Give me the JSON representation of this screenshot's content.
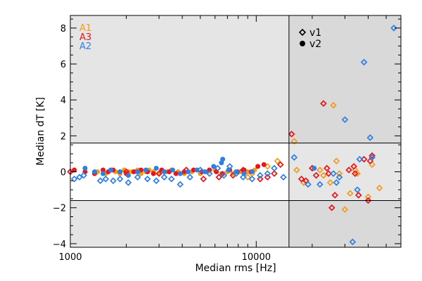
{
  "chart_data": {
    "type": "scatter",
    "title": "",
    "xlabel": "Median rms [Hz]",
    "ylabel": "Median dT [K]",
    "x_scale": "log",
    "xlim": [
      1000,
      60000
    ],
    "ylim": [
      -4.2,
      8.7
    ],
    "x_ticks": [
      1000,
      10000
    ],
    "x_tick_labels": [
      "1000",
      "10000"
    ],
    "y_ticks": [
      -4,
      -2,
      0,
      2,
      4,
      6,
      8
    ],
    "y_tick_labels": [
      "−4",
      "−2",
      "0",
      "2",
      "4",
      "6",
      "8"
    ],
    "legend_channels": [
      {
        "label": "A1",
        "color": "#f39b1e"
      },
      {
        "label": "A3",
        "color": "#e8151b"
      },
      {
        "label": "A2",
        "color": "#2f7fe3"
      }
    ],
    "legend_versions": [
      {
        "label": "v1",
        "marker": "open-diamond"
      },
      {
        "label": "v2",
        "marker": "filled-circle"
      }
    ],
    "legend_placement": "top-left (channels), top-center (versions)",
    "reference_lines": {
      "x": 15000,
      "y": [
        1.6,
        -1.6
      ]
    },
    "shaded_regions": "y > 1.6 and y < -1.6 light gray; x > 15000 darker gray",
    "series": [
      {
        "channel": "A1",
        "version": "v1",
        "color": "#f39b1e",
        "points": [
          [
            9000,
            -0.3
          ],
          [
            9500,
            -0.1
          ],
          [
            11500,
            0.3
          ],
          [
            13000,
            0.6
          ],
          [
            16000,
            1.7
          ],
          [
            16500,
            0.1
          ],
          [
            18000,
            -0.6
          ],
          [
            20000,
            0.2
          ],
          [
            22000,
            0.1
          ],
          [
            23000,
            -0.2
          ],
          [
            25000,
            -0.6
          ],
          [
            26000,
            3.7
          ],
          [
            27000,
            0.6
          ],
          [
            28000,
            -0.1
          ],
          [
            30000,
            -2.1
          ],
          [
            32000,
            -1.2
          ],
          [
            34000,
            0.1
          ],
          [
            35000,
            -0.1
          ],
          [
            40000,
            -1.4
          ],
          [
            42000,
            0.4
          ],
          [
            46000,
            -0.9
          ]
        ]
      },
      {
        "channel": "A1",
        "version": "v2",
        "color": "#f39b1e",
        "points": [
          [
            1400,
            0.0
          ],
          [
            1550,
            -0.1
          ],
          [
            1650,
            0.1
          ],
          [
            1750,
            0.0
          ],
          [
            1850,
            -0.1
          ],
          [
            1950,
            0.1
          ],
          [
            2050,
            0.0
          ],
          [
            2150,
            0.0
          ],
          [
            2300,
            0.1
          ],
          [
            2400,
            -0.1
          ],
          [
            2550,
            0.0
          ],
          [
            2650,
            0.1
          ],
          [
            2800,
            0.0
          ],
          [
            3000,
            -0.1
          ],
          [
            3300,
            0.0
          ],
          [
            3500,
            0.1
          ],
          [
            3800,
            0.0
          ],
          [
            4100,
            -0.1
          ],
          [
            4500,
            0.0
          ],
          [
            5000,
            -0.1
          ],
          [
            5500,
            0.0
          ],
          [
            6000,
            0.1
          ],
          [
            6500,
            -0.1
          ],
          [
            7000,
            0.0
          ],
          [
            7500,
            -0.1
          ],
          [
            8200,
            0.0
          ],
          [
            9000,
            0.0
          ],
          [
            9800,
            0.1
          ]
        ]
      },
      {
        "channel": "A3",
        "version": "v1",
        "color": "#e8151b",
        "points": [
          [
            1000,
            0.0
          ],
          [
            2000,
            0.0
          ],
          [
            3000,
            -0.1
          ],
          [
            4200,
            0.1
          ],
          [
            5200,
            -0.4
          ],
          [
            6300,
            -0.3
          ],
          [
            7500,
            -0.2
          ],
          [
            8500,
            0.1
          ],
          [
            10500,
            -0.4
          ],
          [
            11500,
            -0.3
          ],
          [
            12500,
            -0.1
          ],
          [
            13500,
            0.4
          ],
          [
            15500,
            2.1
          ],
          [
            17500,
            -0.4
          ],
          [
            18500,
            -0.5
          ],
          [
            20000,
            0.2
          ],
          [
            21000,
            -0.2
          ],
          [
            23000,
            3.8
          ],
          [
            24000,
            0.2
          ],
          [
            24500,
            -0.1
          ],
          [
            25500,
            -2.0
          ],
          [
            26500,
            -1.3
          ],
          [
            31500,
            0.1
          ],
          [
            33500,
            0.3
          ],
          [
            34000,
            -0.1
          ],
          [
            35500,
            -1.3
          ],
          [
            38000,
            0.7
          ],
          [
            40000,
            -1.6
          ],
          [
            41000,
            0.6
          ],
          [
            42000,
            0.9
          ]
        ]
      },
      {
        "channel": "A3",
        "version": "v2",
        "color": "#e8151b",
        "points": [
          [
            1050,
            0.1
          ],
          [
            1200,
            0.0
          ],
          [
            1350,
            -0.1
          ],
          [
            1500,
            0.1
          ],
          [
            1600,
            0.0
          ],
          [
            1700,
            0.1
          ],
          [
            1850,
            0.0
          ],
          [
            2000,
            -0.1
          ],
          [
            2200,
            0.0
          ],
          [
            2400,
            0.1
          ],
          [
            2600,
            0.0
          ],
          [
            2800,
            -0.1
          ],
          [
            3100,
            0.1
          ],
          [
            3400,
            0.0
          ],
          [
            3700,
            -0.1
          ],
          [
            4100,
            0.0
          ],
          [
            4600,
            0.1
          ],
          [
            5100,
            0.0
          ],
          [
            5600,
            0.1
          ],
          [
            6100,
            0.0
          ],
          [
            6600,
            -0.1
          ],
          [
            7200,
            0.1
          ],
          [
            7900,
            0.0
          ],
          [
            8600,
            0.1
          ],
          [
            9400,
            0.0
          ],
          [
            10200,
            0.3
          ],
          [
            11000,
            0.4
          ]
        ]
      },
      {
        "channel": "A2",
        "version": "v1",
        "color": "#2f7fe3",
        "points": [
          [
            1050,
            -0.4
          ],
          [
            1120,
            -0.3
          ],
          [
            1180,
            -0.2
          ],
          [
            1450,
            -0.5
          ],
          [
            1550,
            -0.4
          ],
          [
            1700,
            -0.5
          ],
          [
            1850,
            -0.4
          ],
          [
            2050,
            -0.6
          ],
          [
            2300,
            -0.3
          ],
          [
            2600,
            -0.4
          ],
          [
            2900,
            -0.5
          ],
          [
            3200,
            -0.3
          ],
          [
            3500,
            -0.4
          ],
          [
            3900,
            -0.7
          ],
          [
            4400,
            -0.3
          ],
          [
            5000,
            0.1
          ],
          [
            5600,
            -0.1
          ],
          [
            6200,
            0.2
          ],
          [
            6700,
            -0.2
          ],
          [
            7200,
            0.3
          ],
          [
            7800,
            -0.1
          ],
          [
            8500,
            -0.3
          ],
          [
            9500,
            -0.4
          ],
          [
            10500,
            -0.2
          ],
          [
            11500,
            -0.1
          ],
          [
            12500,
            0.2
          ],
          [
            14000,
            -0.3
          ],
          [
            16000,
            0.8
          ],
          [
            19000,
            -0.7
          ],
          [
            22000,
            -0.7
          ],
          [
            26000,
            -0.1
          ],
          [
            27000,
            -0.6
          ],
          [
            28000,
            -0.3
          ],
          [
            30000,
            2.9
          ],
          [
            33000,
            -3.9
          ],
          [
            35000,
            -1.0
          ],
          [
            36000,
            0.7
          ],
          [
            38000,
            6.1
          ],
          [
            41000,
            1.9
          ],
          [
            42000,
            0.8
          ],
          [
            55000,
            8.0
          ]
        ]
      },
      {
        "channel": "A2",
        "version": "v2",
        "color": "#2f7fe3",
        "points": [
          [
            1200,
            0.2
          ],
          [
            1350,
            0.0
          ],
          [
            1500,
            -0.1
          ],
          [
            1650,
            0.1
          ],
          [
            1850,
            0.0
          ],
          [
            2050,
            -0.2
          ],
          [
            2300,
            0.0
          ],
          [
            2550,
            0.1
          ],
          [
            2900,
            0.2
          ],
          [
            3200,
            0.0
          ],
          [
            3550,
            0.1
          ],
          [
            3900,
            -0.1
          ],
          [
            4300,
            0.0
          ],
          [
            4800,
            0.1
          ],
          [
            5300,
            0.0
          ],
          [
            5900,
            0.3
          ],
          [
            6500,
            0.5
          ],
          [
            6600,
            0.7
          ],
          [
            7100,
            0.1
          ],
          [
            7800,
            0.0
          ],
          [
            8600,
            -0.1
          ],
          [
            9500,
            0.0
          ],
          [
            20500,
            0.2
          ]
        ]
      }
    ]
  }
}
